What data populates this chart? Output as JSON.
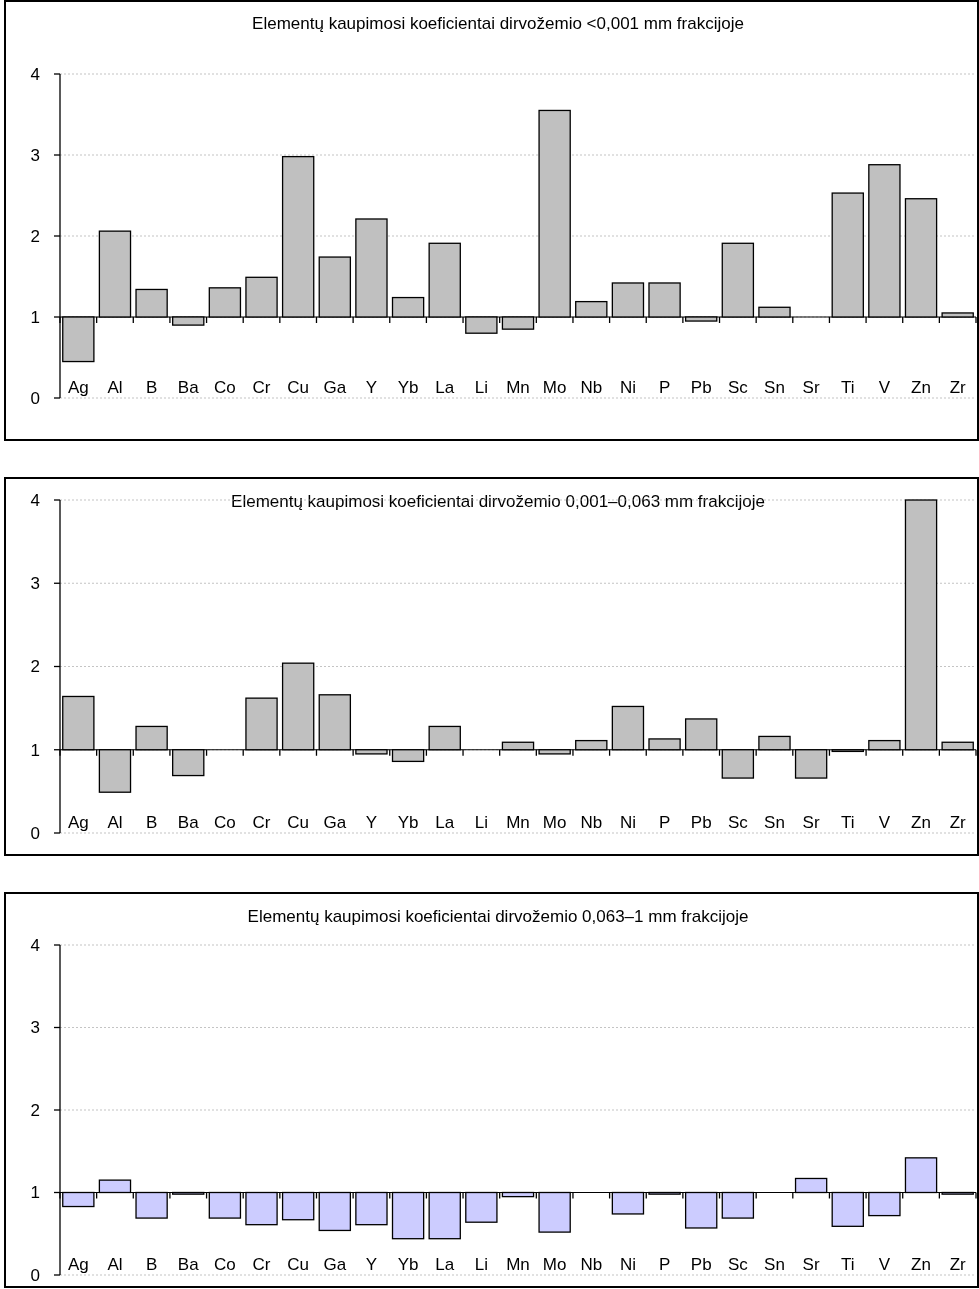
{
  "chart_data": [
    {
      "type": "bar",
      "title": "Elementų kaupimosi koeficientai dirvožemio <0,001 mm frakcijoje",
      "categories": [
        "Ag",
        "Al",
        "B",
        "Ba",
        "Co",
        "Cr",
        "Cu",
        "Ga",
        "Y",
        "Yb",
        "La",
        "Li",
        "Mn",
        "Mo",
        "Nb",
        "Ni",
        "P",
        "Pb",
        "Sc",
        "Sn",
        "Sr",
        "Ti",
        "V",
        "Zn",
        "Zr"
      ],
      "base": [
        1,
        1,
        1,
        1,
        1,
        1,
        1,
        1,
        1,
        1,
        1,
        1,
        1,
        1,
        1,
        1,
        1,
        1,
        1,
        1,
        null,
        1,
        1,
        1,
        1
      ],
      "values": [
        -0.55,
        1.06,
        0.34,
        -0.1,
        0.36,
        0.49,
        1.98,
        0.74,
        1.21,
        0.24,
        0.91,
        -0.2,
        -0.15,
        2.55,
        0.19,
        0.42,
        0.42,
        -0.05,
        0.91,
        0.12,
        null,
        1.53,
        1.88,
        1.46,
        0.05
      ],
      "color": "#c0c0c0",
      "ylim": [
        0,
        4
      ],
      "yticks": [
        0,
        1,
        2,
        3,
        4
      ],
      "grid": "y",
      "ref_lines": [
        {
          "axis": "y",
          "value": 1,
          "color": "#000000"
        }
      ]
    },
    {
      "type": "bar",
      "title": "Elementų kaupimosi koeficientai dirvožemio 0,001–0,063 mm frakcijoje",
      "categories": [
        "Ag",
        "Al",
        "B",
        "Ba",
        "Co",
        "Cr",
        "Cu",
        "Ga",
        "Y",
        "Yb",
        "La",
        "Li",
        "Mn",
        "Mo",
        "Nb",
        "Ni",
        "P",
        "Pb",
        "Sc",
        "Sn",
        "Sr",
        "Ti",
        "V",
        "Zn",
        "Zr"
      ],
      "base": [
        1,
        1,
        1,
        1,
        null,
        1,
        1,
        1,
        1,
        1,
        1,
        null,
        1,
        1,
        1,
        1,
        1,
        1,
        1,
        1,
        1,
        1,
        1,
        1,
        1
      ],
      "values": [
        0.64,
        -0.51,
        0.28,
        -0.31,
        null,
        0.62,
        1.04,
        0.66,
        -0.05,
        -0.14,
        0.28,
        null,
        0.09,
        -0.05,
        0.11,
        0.52,
        0.13,
        0.37,
        -0.34,
        0.16,
        -0.34,
        -0.02,
        0.11,
        3,
        0.09
      ],
      "color": "#c0c0c0",
      "ylim": [
        0,
        4
      ],
      "yticks": [
        0,
        1,
        2,
        3,
        4
      ],
      "grid": "y",
      "ref_lines": [
        {
          "axis": "y",
          "value": 1,
          "color": "#000000"
        }
      ]
    },
    {
      "type": "bar",
      "title": "Elementų kaupimosi koeficientai dirvožemio 0,063–1 mm frakcijoje",
      "categories": [
        "Ag",
        "Al",
        "B",
        "Ba",
        "Co",
        "Cr",
        "Cu",
        "Ga",
        "Y",
        "Yb",
        "La",
        "Li",
        "Mn",
        "Mo",
        "Nb",
        "Ni",
        "P",
        "Pb",
        "Sc",
        "Sn",
        "Sr",
        "Ti",
        "V",
        "Zn",
        "Zr"
      ],
      "base": [
        1,
        1,
        1,
        1,
        1,
        1,
        1,
        1,
        1,
        1,
        1,
        1,
        1,
        1,
        null,
        1,
        1,
        1,
        1,
        null,
        1,
        1,
        1,
        1,
        1
      ],
      "values": [
        -0.17,
        0.15,
        -0.31,
        -0.02,
        -0.31,
        -0.39,
        -0.33,
        -0.46,
        -0.39,
        -0.56,
        -0.56,
        -0.36,
        -0.05,
        -0.48,
        null,
        -0.26,
        -0.02,
        -0.43,
        -0.31,
        null,
        0.17,
        -0.41,
        -0.28,
        0.42,
        -0.02
      ],
      "color": "#ccccff",
      "ylim": [
        0,
        4
      ],
      "yticks": [
        0,
        1,
        2,
        3,
        4
      ],
      "grid": "y",
      "ref_lines": [
        {
          "axis": "y",
          "value": 1,
          "color": "#000000"
        }
      ]
    }
  ]
}
